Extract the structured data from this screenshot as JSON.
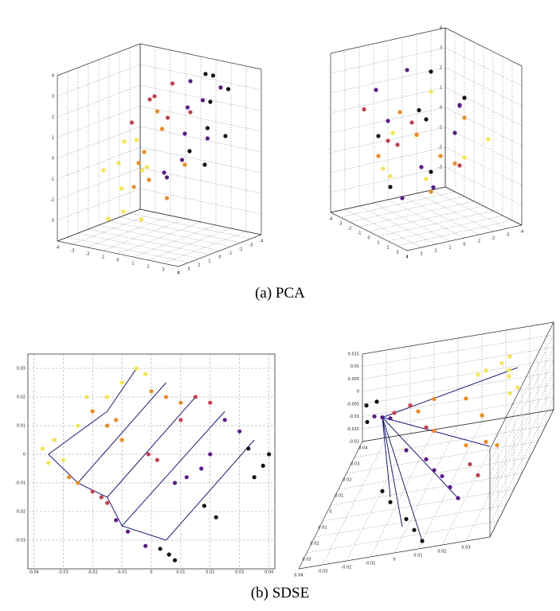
{
  "captions": [
    "(a) PCA",
    "(b) SDSE"
  ],
  "chart_data": [
    {
      "type": "scatter3d",
      "xlim": [
        -4,
        4
      ],
      "ylim": [
        -4,
        4
      ],
      "zlim": [
        -4,
        4
      ],
      "xticks": [
        -4,
        -3,
        -2,
        -1,
        0,
        1,
        2,
        3,
        4
      ],
      "yticks": [
        -4,
        -3,
        -2,
        -1,
        0,
        1,
        2,
        3,
        4
      ],
      "zticks": [
        -3,
        -2,
        -1,
        0,
        1,
        2,
        3,
        4
      ],
      "series": [
        {
          "color": "#f7e645",
          "x": [
            -3,
            -2.5,
            -2,
            -1.5,
            -3,
            -2,
            -1,
            -2.5,
            -1.5,
            -0.5
          ],
          "y": [
            1,
            0,
            2,
            -1,
            -1,
            1,
            2,
            -2,
            0,
            1
          ],
          "z": [
            -1,
            -2,
            -3,
            -1,
            0,
            -0.5,
            -2.5,
            -1.5,
            0.5,
            -3
          ]
        },
        {
          "color": "#f28a1e",
          "x": [
            -1,
            0,
            -0.5,
            0.5,
            -1.5,
            0,
            1,
            -1
          ],
          "y": [
            0,
            1,
            -1,
            0,
            -2,
            2,
            -1,
            1
          ],
          "z": [
            0,
            -1,
            1,
            -2,
            1.5,
            0,
            -0.5,
            -1.5
          ]
        },
        {
          "color": "#c83e4c",
          "x": [
            -2,
            -1.5,
            -1,
            0,
            -2.5,
            -0.5
          ],
          "y": [
            -2,
            -3,
            -1,
            -3,
            -1,
            -2
          ],
          "z": [
            2,
            1,
            2.5,
            1.5,
            1,
            3
          ]
        },
        {
          "color": "#5c1b8b",
          "x": [
            0.5,
            1,
            1.5,
            2,
            0,
            1,
            2.5,
            0.5,
            1.5
          ],
          "y": [
            -2,
            -1,
            0,
            -3,
            -3,
            1,
            -1,
            0,
            -2
          ],
          "z": [
            2,
            1,
            0,
            3,
            3,
            -0.5,
            1,
            -1,
            2.5
          ]
        },
        {
          "color": "#111111",
          "x": [
            1.5,
            2,
            2.5,
            3,
            2,
            3,
            1,
            2.5
          ],
          "y": [
            -3,
            -2,
            -1,
            -2,
            0,
            0,
            -3,
            -3
          ],
          "z": [
            3.5,
            2.5,
            1.5,
            1,
            0.5,
            0,
            3.5,
            3
          ]
        }
      ]
    },
    {
      "type": "scatter3d",
      "xlim": [
        -4,
        4
      ],
      "ylim": [
        -4,
        4
      ],
      "zlim": [
        -4,
        4
      ],
      "xticks": [
        -4,
        -3,
        -2,
        -1,
        0,
        1,
        2,
        3,
        4
      ],
      "yticks": [
        -4,
        -3,
        -2,
        -1,
        0,
        1,
        2,
        3,
        4
      ],
      "zticks": [
        -3,
        -2,
        -1,
        0,
        1,
        2,
        3,
        4
      ],
      "series": [
        {
          "color": "#f7e645",
          "x": [
            -2,
            1,
            0,
            2,
            -1,
            3,
            -3,
            0.5
          ],
          "y": [
            1,
            -2,
            0,
            2,
            -1,
            0,
            2,
            -3
          ],
          "z": [
            -1,
            0,
            -2,
            1,
            2,
            -1,
            0,
            -2.5
          ]
        },
        {
          "color": "#f28a1e",
          "x": [
            0,
            -2,
            2,
            1,
            -1,
            -3,
            2.5,
            0
          ],
          "y": [
            -1,
            1,
            -2,
            2,
            0,
            -1,
            1,
            3
          ],
          "z": [
            0,
            1,
            -1,
            -2,
            -1,
            1,
            2,
            -0.5
          ]
        },
        {
          "color": "#c83e4c",
          "x": [
            1,
            -1,
            2,
            -2,
            0,
            3
          ],
          "y": [
            0,
            2,
            -1,
            1,
            -3,
            -2
          ],
          "z": [
            1,
            -1,
            0,
            2,
            -1,
            1.5
          ]
        },
        {
          "color": "#5c1b8b",
          "x": [
            -1,
            0,
            1,
            2,
            -2,
            3,
            -3,
            1.5,
            -0.5
          ],
          "y": [
            2,
            -2,
            1,
            -1,
            0,
            2,
            -1,
            -3,
            0
          ],
          "z": [
            2,
            3,
            -1,
            1,
            0,
            -2,
            1,
            2,
            -2.5
          ]
        },
        {
          "color": "#111111",
          "x": [
            0,
            2,
            -2,
            1,
            -1,
            -1.5,
            2.5
          ],
          "y": [
            0,
            -2,
            1,
            2,
            -1,
            -3,
            0
          ],
          "z": [
            1,
            0,
            2,
            -1,
            3,
            0.5,
            -2
          ]
        }
      ]
    },
    {
      "type": "scatter",
      "xlim": [
        -0.042,
        0.042
      ],
      "ylim": [
        -0.04,
        0.035
      ],
      "xticks": [
        -0.04,
        -0.03,
        -0.02,
        -0.01,
        0,
        0.01,
        0.02,
        0.03,
        0.04
      ],
      "yticks": [
        -0.03,
        -0.02,
        -0.01,
        0,
        0.01,
        0.02,
        0.03
      ],
      "series": [
        {
          "color": "#1c1f7a",
          "mode": "lines",
          "x": [
            -0.035,
            -0.015,
            -0.005,
            null,
            -0.035,
            -0.025,
            null,
            -0.025,
            0.005,
            null,
            -0.015,
            0.015,
            null,
            -0.01,
            0.025,
            null,
            0.005,
            0.035,
            null,
            -0.025,
            -0.015,
            -0.01,
            0.005
          ],
          "y": [
            0,
            0.015,
            0.03,
            null,
            0,
            -0.01,
            null,
            -0.01,
            0.025,
            null,
            -0.015,
            0.02,
            null,
            -0.025,
            0.015,
            null,
            -0.03,
            0.005,
            null,
            -0.01,
            -0.015,
            -0.025,
            -0.03
          ]
        },
        {
          "color": "#f7e645",
          "x": [
            -0.037,
            -0.033,
            -0.03,
            -0.025,
            -0.02,
            -0.015,
            -0.01,
            -0.005,
            -0.002,
            -0.022,
            -0.035
          ],
          "y": [
            0.002,
            0.005,
            -0.002,
            0.01,
            0.015,
            0.02,
            0.025,
            0.03,
            0.028,
            0.02,
            -0.003
          ]
        },
        {
          "color": "#f28a1e",
          "x": [
            -0.028,
            -0.025,
            -0.015,
            -0.01,
            0.0,
            0.005,
            0.01,
            -0.012,
            -0.02
          ],
          "y": [
            -0.008,
            -0.01,
            0.01,
            0.005,
            0.022,
            0.02,
            0.018,
            0.012,
            0.015
          ]
        },
        {
          "color": "#c83e4c",
          "x": [
            -0.02,
            -0.015,
            -0.001,
            0.002,
            0.015,
            0.02,
            0.01,
            -0.017
          ],
          "y": [
            -0.013,
            -0.017,
            0.0,
            -0.002,
            0.02,
            0.018,
            0.012,
            -0.015
          ]
        },
        {
          "color": "#5c1b8b",
          "x": [
            -0.012,
            -0.008,
            0.008,
            0.012,
            0.025,
            0.03,
            0.02,
            -0.002,
            0.017
          ],
          "y": [
            -0.023,
            -0.027,
            -0.01,
            -0.008,
            0.012,
            0.008,
            0.0,
            -0.032,
            -0.005
          ]
        },
        {
          "color": "#111111",
          "x": [
            0.033,
            0.038,
            0.035,
            0.018,
            0.022,
            0.003,
            0.008,
            0.006,
            0.04
          ],
          "y": [
            0.002,
            -0.004,
            -0.008,
            -0.018,
            -0.022,
            -0.033,
            -0.037,
            -0.035,
            0.0
          ]
        }
      ]
    },
    {
      "type": "scatter3d",
      "xlim": [
        -0.04,
        0.04
      ],
      "ylim": [
        -0.04,
        0.04
      ],
      "zlim": [
        -0.02,
        0.015
      ],
      "xticks": [
        -0.03,
        -0.02,
        -0.01,
        0,
        0.01,
        0.02,
        0.03
      ],
      "yticks": [
        -0.04,
        -0.03,
        -0.02,
        -0.01,
        0,
        0.01,
        0.02,
        0.03,
        0.04
      ],
      "zticks": [
        -0.02,
        -0.015,
        -0.01,
        -0.005,
        0,
        0.005,
        0.01,
        0.015
      ],
      "series": [
        {
          "color": "#1c1f7a",
          "mode": "lines",
          "x": [
            -0.025,
            0.03,
            null,
            -0.025,
            0.025,
            null,
            -0.025,
            0.02,
            null,
            -0.025,
            0.01,
            null,
            -0.025,
            0.0,
            null,
            -0.025,
            -0.01
          ],
          "y": [
            -0.02,
            -0.025,
            null,
            -0.02,
            -0.005,
            null,
            -0.02,
            0.02,
            null,
            -0.02,
            0.035,
            null,
            -0.02,
            0.03,
            null,
            -0.02,
            0.015
          ],
          "z": [
            0,
            0.008,
            null,
            0,
            -0.01,
            null,
            0,
            -0.014,
            null,
            0,
            -0.02,
            null,
            0,
            -0.016,
            null,
            0,
            -0.012
          ]
        },
        {
          "color": "#f7e645",
          "x": [
            0.02,
            0.025,
            0.03,
            0.028,
            0.015,
            0.022,
            0.03,
            0.01
          ],
          "y": [
            -0.035,
            -0.03,
            -0.025,
            -0.02,
            -0.03,
            -0.038,
            -0.015,
            -0.035
          ],
          "z": [
            0.005,
            0.01,
            0,
            0.008,
            0.006,
            0,
            0.004,
            0.002
          ]
        },
        {
          "color": "#f28a1e",
          "x": [
            0.02,
            0.025,
            0.01,
            0,
            -0.01,
            0.015,
            -0.005,
            0.028
          ],
          "y": [
            -0.01,
            0,
            -0.02,
            -0.01,
            -0.02,
            -0.005,
            -0.025,
            -0.005
          ],
          "z": [
            0,
            -0.005,
            0.002,
            -0.003,
            0,
            -0.008,
            0.001,
            -0.01
          ]
        },
        {
          "color": "#c83e4c",
          "x": [
            -0.015,
            -0.02,
            0.02,
            0.025,
            -0.005
          ],
          "y": [
            -0.025,
            -0.02,
            0.005,
            0.01,
            -0.015
          ],
          "z": [
            0,
            0.001,
            -0.01,
            -0.012,
            -0.004
          ]
        },
        {
          "color": "#5c1b8b",
          "x": [
            -0.025,
            -0.03,
            -0.02,
            0,
            0.005,
            0.015,
            0.02,
            -0.01,
            0.01
          ],
          "y": [
            -0.02,
            -0.025,
            -0.015,
            0,
            0.005,
            0.015,
            0.02,
            -0.005,
            0.01
          ],
          "z": [
            0,
            -0.002,
            0.002,
            -0.008,
            -0.01,
            -0.012,
            -0.014,
            -0.006,
            -0.01
          ]
        },
        {
          "color": "#111111",
          "x": [
            -0.035,
            -0.03,
            -0.032,
            -0.015,
            -0.01,
            0.005,
            0.01,
            0.0
          ],
          "y": [
            -0.03,
            -0.028,
            -0.022,
            0.01,
            0.015,
            0.03,
            0.035,
            0.025
          ],
          "z": [
            0,
            0.002,
            -0.002,
            -0.012,
            -0.014,
            -0.018,
            -0.02,
            -0.016
          ]
        }
      ]
    }
  ]
}
